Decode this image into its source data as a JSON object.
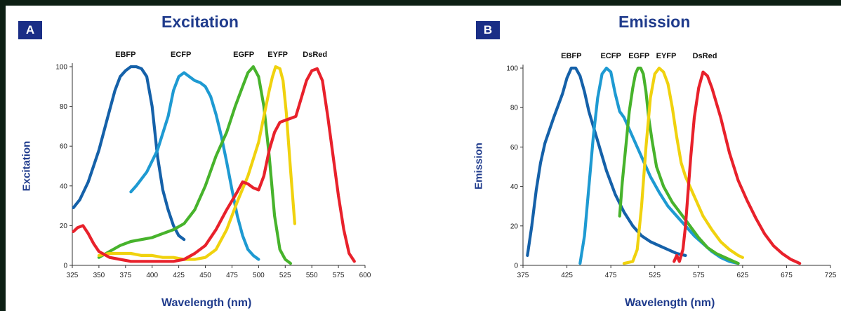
{
  "chart_data": [
    {
      "type": "line",
      "panel": "A",
      "title": "Excitation",
      "xlabel": "Wavelength (nm)",
      "ylabel": "Excitation",
      "xlim": [
        325,
        600
      ],
      "ylim": [
        0,
        100
      ],
      "xticks": [
        325,
        350,
        375,
        400,
        425,
        450,
        475,
        500,
        525,
        550,
        575,
        600
      ],
      "yticks": [
        0,
        20,
        40,
        60,
        80,
        100
      ],
      "grid": false,
      "legend": "labels above peaks",
      "series": [
        {
          "name": "EBFP",
          "color": "#1561a9",
          "label_x": 375,
          "x": [
            326,
            332,
            340,
            350,
            358,
            365,
            370,
            375,
            380,
            385,
            390,
            395,
            400,
            405,
            410,
            415,
            420,
            425,
            430
          ],
          "y": [
            29,
            33,
            42,
            58,
            74,
            88,
            95,
            98,
            100,
            100,
            99,
            95,
            80,
            55,
            38,
            28,
            20,
            15,
            13
          ]
        },
        {
          "name": "ECFP",
          "color": "#1e9ad2",
          "label_x": 427,
          "x": [
            380,
            385,
            395,
            405,
            415,
            420,
            425,
            430,
            435,
            440,
            445,
            450,
            455,
            460,
            465,
            470,
            475,
            480,
            485,
            490,
            495,
            500
          ],
          "y": [
            37,
            40,
            47,
            58,
            75,
            88,
            95,
            97,
            95,
            93,
            92,
            90,
            85,
            76,
            65,
            52,
            38,
            25,
            15,
            8,
            5,
            3
          ]
        },
        {
          "name": "EGFP",
          "color": "#47b32c",
          "label_x": 486,
          "x": [
            350,
            360,
            370,
            380,
            390,
            400,
            410,
            420,
            430,
            440,
            450,
            460,
            470,
            478,
            485,
            490,
            495,
            500,
            505,
            510,
            515,
            520,
            525,
            530
          ],
          "y": [
            4,
            7,
            10,
            12,
            13,
            14,
            16,
            18,
            21,
            28,
            40,
            55,
            67,
            80,
            90,
            97,
            100,
            95,
            80,
            55,
            25,
            8,
            3,
            1
          ]
        },
        {
          "name": "EYFP",
          "color": "#f0d20e",
          "label_x": 518,
          "x": [
            350,
            360,
            370,
            380,
            390,
            400,
            410,
            420,
            430,
            440,
            450,
            460,
            470,
            480,
            490,
            500,
            505,
            510,
            513,
            516,
            520,
            523,
            526,
            530,
            534
          ],
          "y": [
            5,
            6,
            6,
            6,
            5,
            5,
            4,
            4,
            3,
            3,
            4,
            8,
            18,
            32,
            45,
            62,
            75,
            88,
            95,
            100,
            99,
            93,
            77,
            48,
            21
          ]
        },
        {
          "name": "DsRed",
          "color": "#e8212b",
          "label_x": 553,
          "x": [
            326,
            330,
            335,
            340,
            345,
            350,
            360,
            370,
            380,
            390,
            400,
            410,
            420,
            430,
            440,
            450,
            460,
            470,
            480,
            485,
            490,
            495,
            500,
            505,
            510,
            515,
            520,
            525,
            530,
            535,
            540,
            545,
            550,
            555,
            560,
            565,
            570,
            575,
            580,
            585,
            590
          ],
          "y": [
            17,
            19,
            20,
            16,
            11,
            7,
            4,
            3,
            2,
            2,
            2,
            2,
            2,
            3,
            6,
            10,
            18,
            28,
            37,
            42,
            41,
            39,
            38,
            45,
            58,
            67,
            72,
            73,
            74,
            75,
            84,
            93,
            98,
            99,
            93,
            75,
            55,
            35,
            18,
            6,
            2
          ]
        }
      ]
    },
    {
      "type": "line",
      "panel": "B",
      "title": "Emission",
      "xlabel": "Wavelength (nm)",
      "ylabel": "Emission",
      "xlim": [
        375,
        725
      ],
      "ylim": [
        0,
        100
      ],
      "xticks": [
        375,
        425,
        475,
        525,
        575,
        625,
        675,
        725
      ],
      "yticks": [
        0,
        20,
        40,
        60,
        80,
        100
      ],
      "grid": false,
      "legend": "labels above peaks",
      "series": [
        {
          "name": "EBFP",
          "color": "#1561a9",
          "label_x": 430,
          "x": [
            380,
            385,
            390,
            395,
            400,
            410,
            420,
            425,
            430,
            435,
            440,
            445,
            450,
            460,
            470,
            480,
            490,
            500,
            510,
            520,
            530,
            540,
            550,
            560
          ],
          "y": [
            5,
            20,
            38,
            52,
            62,
            75,
            87,
            95,
            100,
            100,
            96,
            88,
            78,
            63,
            48,
            36,
            27,
            20,
            15,
            12,
            10,
            8,
            6,
            5
          ]
        },
        {
          "name": "ECFP",
          "color": "#1e9ad2",
          "label_x": 475,
          "x": [
            440,
            445,
            450,
            455,
            460,
            465,
            470,
            475,
            480,
            485,
            490,
            500,
            510,
            520,
            530,
            540,
            550,
            560,
            570,
            580,
            590,
            600,
            610,
            620
          ],
          "y": [
            1,
            15,
            40,
            65,
            85,
            97,
            100,
            98,
            87,
            78,
            75,
            65,
            55,
            45,
            37,
            30,
            25,
            20,
            15,
            11,
            7,
            4,
            2,
            1
          ]
        },
        {
          "name": "EGFP",
          "color": "#47b32c",
          "label_x": 507,
          "x": [
            485,
            488,
            492,
            496,
            500,
            503,
            506,
            509,
            512,
            515,
            518,
            522,
            527,
            535,
            545,
            555,
            565,
            575,
            585,
            595,
            605,
            615,
            620
          ],
          "y": [
            25,
            42,
            60,
            78,
            90,
            97,
            100,
            100,
            97,
            88,
            75,
            63,
            50,
            40,
            32,
            26,
            20,
            14,
            9,
            6,
            4,
            2,
            1
          ]
        },
        {
          "name": "EYFP",
          "color": "#f0d20e",
          "label_x": 538,
          "x": [
            490,
            500,
            505,
            510,
            515,
            520,
            525,
            530,
            535,
            540,
            545,
            550,
            555,
            560,
            570,
            580,
            590,
            600,
            610,
            620,
            625
          ],
          "y": [
            1,
            2,
            8,
            30,
            60,
            85,
            97,
            100,
            98,
            92,
            80,
            65,
            52,
            45,
            35,
            25,
            18,
            12,
            8,
            5,
            4
          ]
        },
        {
          "name": "DsRed",
          "color": "#e8212b",
          "label_x": 582,
          "x": [
            547,
            550,
            553,
            557,
            560,
            563,
            566,
            570,
            575,
            580,
            585,
            590,
            600,
            610,
            620,
            630,
            640,
            650,
            660,
            670,
            680,
            690
          ],
          "y": [
            2,
            5,
            2,
            8,
            20,
            38,
            55,
            75,
            90,
            98,
            96,
            90,
            75,
            57,
            43,
            33,
            24,
            16,
            10,
            6,
            3,
            1
          ]
        }
      ]
    }
  ],
  "panels": {
    "a": {
      "badge": "A",
      "title": "Excitation",
      "xlabel": "Wavelength (nm)",
      "ylabel": "Excitation"
    },
    "b": {
      "badge": "B",
      "title": "Emission",
      "xlabel": "Wavelength (nm)",
      "ylabel": "Emission"
    }
  }
}
